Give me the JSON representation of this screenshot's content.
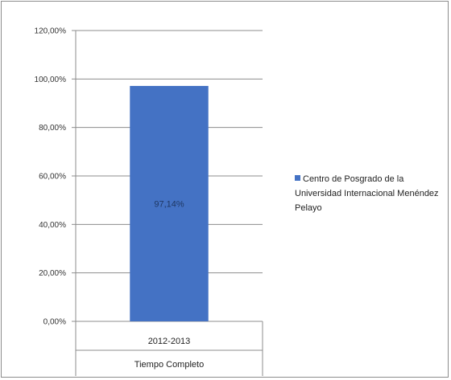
{
  "chart_data": {
    "type": "bar",
    "categories": [
      "2012-2013"
    ],
    "category_group": "Tiempo Completo",
    "series": [
      {
        "name": "Centro de Posgrado de la Universidad Internacional Menéndez Pelayo",
        "values": [
          97.14
        ],
        "value_labels": [
          "97,14%"
        ],
        "color": "#4472c4"
      }
    ],
    "title": "",
    "xlabel": "",
    "ylabel": "",
    "ylim": [
      0,
      120
    ],
    "yticks": [
      0,
      20,
      40,
      60,
      80,
      100,
      120
    ],
    "ytick_labels": [
      "0,00%",
      "20,00%",
      "40,00%",
      "60,00%",
      "80,00%",
      "100,00%",
      "120,00%"
    ],
    "grid": true,
    "legend_position": "right"
  }
}
